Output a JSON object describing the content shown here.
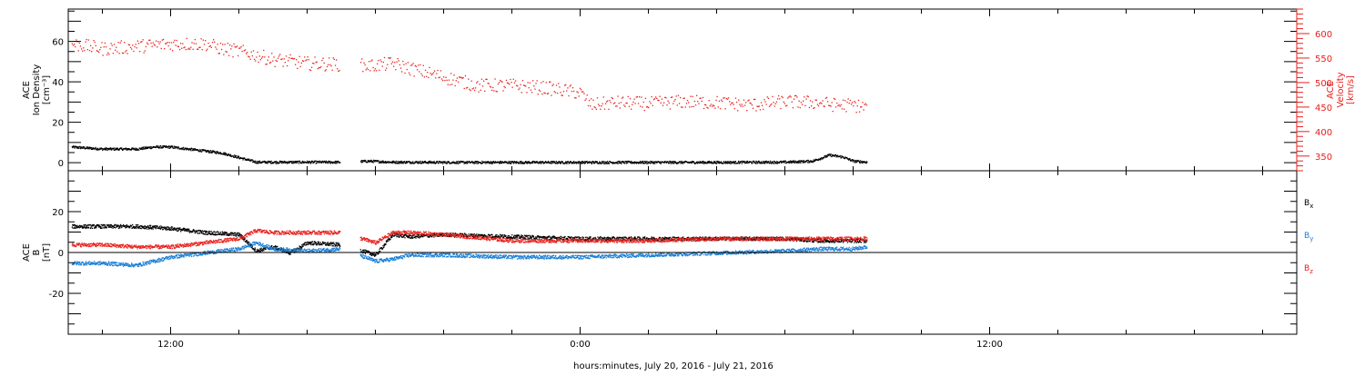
{
  "colors": {
    "black": "#000000",
    "red": "#e8201c",
    "blue": "#1a7fd6",
    "background": "#ffffff"
  },
  "xaxis": {
    "label": "hours:minutes, July 20, 2016 - July 21, 2016",
    "range_hours": [
      9,
      45
    ],
    "major_ticks": [
      {
        "hour": 12,
        "label": "12:00"
      },
      {
        "hour": 24,
        "label": "0:00"
      },
      {
        "hour": 36,
        "label": "12:00"
      }
    ],
    "minor_tick_step_hours": 2
  },
  "chart_data": [
    {
      "type": "scatter",
      "panel": "top",
      "y_label_lines": [
        "ACE",
        "Ion Density",
        "[cm⁻³]"
      ],
      "ylim": [
        -4,
        76
      ],
      "y_ticks": [
        0,
        20,
        40,
        60
      ],
      "y_ticks_minor_step": 5,
      "grid": false,
      "series": [
        {
          "color": "#000000",
          "axis": "left",
          "x_hours": [
            9.1,
            10,
            11,
            11.5,
            12,
            12.5,
            13,
            13.5,
            14.5,
            15,
            16,
            17,
            17.8,
            18.5,
            19,
            20,
            22,
            24,
            26,
            28,
            30,
            30.8,
            31.3,
            31.7,
            32,
            32.4
          ],
          "values": [
            8,
            7,
            7,
            8,
            8,
            7,
            6,
            5,
            0.5,
            0.5,
            0.5,
            0.5,
            1,
            0.5,
            0.5,
            0.4,
            0.4,
            0.4,
            0.4,
            0.4,
            0.5,
            1,
            4,
            3,
            1,
            0.5
          ]
        }
      ],
      "right_axis": {
        "label_lines": [
          "ACE",
          "Velocity",
          "[km/s]"
        ],
        "color": "#e8201c",
        "ylim": [
          320,
          650
        ],
        "y_ticks": [
          350,
          400,
          450,
          500,
          550,
          600
        ],
        "y_ticks_minor_step": 10
      },
      "right_series": [
        {
          "color": "#e8201c",
          "axis": "right",
          "x_hours": [
            9.1,
            10,
            11,
            12,
            13,
            13.5,
            14,
            15,
            16,
            17,
            17.8,
            18.5,
            19,
            20,
            21,
            22,
            23,
            24,
            24.3,
            25,
            26,
            27,
            28,
            29,
            30,
            31,
            31.5,
            32,
            32.4
          ],
          "values": [
            580,
            570,
            575,
            580,
            580,
            570,
            565,
            548,
            540,
            538,
            535,
            540,
            530,
            512,
            495,
            495,
            490,
            480,
            455,
            460,
            458,
            462,
            460,
            455,
            462,
            460,
            455,
            455,
            450
          ]
        }
      ]
    },
    {
      "type": "scatter",
      "panel": "bottom",
      "y_label_lines": [
        "ACE",
        "B",
        "[nT]"
      ],
      "ylim": [
        -40,
        40
      ],
      "y_ticks": [
        -20,
        0,
        20
      ],
      "y_ticks_minor_step": 5,
      "zero_line": true,
      "grid": false,
      "legend_position": "right",
      "series": [
        {
          "name": "B",
          "sub": "x",
          "color": "#000000",
          "x_hours": [
            9.1,
            10,
            11,
            12,
            13,
            14,
            14.5,
            15,
            15.5,
            16,
            17,
            18,
            18.5,
            19,
            20,
            22,
            24,
            26,
            28,
            30,
            31,
            32,
            32.4
          ],
          "values": [
            13,
            13,
            13,
            12,
            10,
            9,
            1,
            3,
            0,
            5,
            4,
            -1,
            9,
            8,
            9,
            8,
            7,
            7,
            7,
            7,
            6,
            6,
            6
          ]
        },
        {
          "name": "B",
          "sub": "y",
          "color": "#1a7fd6",
          "x_hours": [
            9.1,
            10,
            11,
            12,
            13,
            14,
            14.5,
            15,
            16,
            17,
            18,
            18.5,
            19,
            20,
            22,
            24,
            26,
            28,
            30,
            31,
            32,
            32.4
          ],
          "values": [
            -5,
            -5,
            -6,
            -2,
            0,
            2,
            5,
            2,
            1,
            2,
            -4,
            -3,
            -1,
            -1,
            -2,
            -2,
            -1,
            0,
            1,
            2,
            2,
            3
          ]
        },
        {
          "name": "B",
          "sub": "z",
          "color": "#e8201c",
          "x_hours": [
            9.1,
            10,
            11,
            12,
            13,
            14,
            14.5,
            15,
            16,
            17,
            18,
            18.5,
            19,
            20,
            22,
            24,
            26,
            28,
            30,
            31,
            32,
            32.4
          ],
          "values": [
            4,
            4,
            3,
            3,
            5,
            7,
            11,
            10,
            10,
            10,
            5,
            10,
            10,
            9,
            6,
            6,
            6,
            7,
            7,
            7,
            7,
            7
          ]
        }
      ]
    }
  ]
}
